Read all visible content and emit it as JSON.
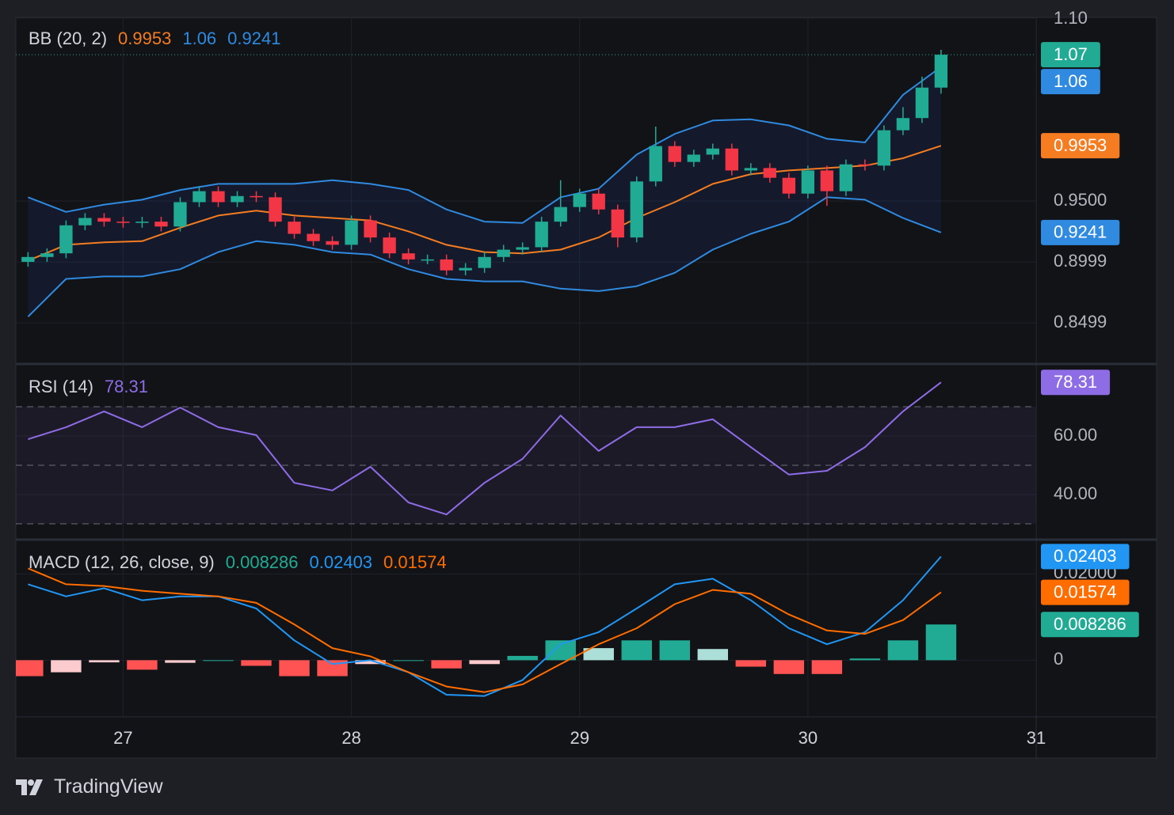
{
  "chart_data": [
    {
      "type": "candlestick",
      "title": "BB (20, 2)",
      "x": [
        26.5833,
        26.6667,
        26.75,
        26.8333,
        26.9167,
        27,
        27.0833,
        27.1667,
        27.25,
        27.3333,
        27.4167,
        27.5,
        27.5833,
        27.6667,
        27.75,
        27.8333,
        27.9167,
        28,
        28.0833,
        28.1667,
        28.25,
        28.3333,
        28.4167,
        28.5,
        28.5833,
        28.6667,
        28.75,
        28.8333,
        28.9167,
        29,
        29.0833,
        29.1667,
        29.25,
        29.3333,
        29.4167,
        29.5,
        29.5833,
        29.6667,
        29.75,
        29.8333,
        29.9167,
        30,
        30.0833,
        30.1667,
        30.25,
        30.3333,
        30.4167,
        30.5,
        30.5833
      ],
      "open": [
        0.9,
        0.904,
        0.907,
        0.93,
        0.936,
        0.933,
        0.932,
        0.933,
        0.929,
        0.949,
        0.958,
        0.949,
        0.954,
        0.953,
        0.933,
        0.923,
        0.917,
        0.914,
        0.934,
        0.92,
        0.907,
        0.902,
        0.902,
        0.893,
        0.895,
        0.904,
        0.91,
        0.912,
        0.933,
        0.945,
        0.956,
        0.943,
        0.92,
        0.966,
        0.995,
        0.982,
        0.988,
        0.993,
        0.975,
        0.977,
        0.969,
        0.956,
        0.975,
        0.958,
        0.98,
        0.979,
        1.008,
        1.018,
        1.043
      ],
      "high": [
        0.908,
        0.911,
        0.934,
        0.94,
        0.94,
        0.937,
        0.937,
        0.937,
        0.953,
        0.962,
        0.962,
        0.958,
        0.958,
        0.957,
        0.937,
        0.927,
        0.921,
        0.938,
        0.938,
        0.924,
        0.911,
        0.906,
        0.906,
        0.899,
        0.908,
        0.914,
        0.916,
        0.937,
        0.967,
        0.96,
        0.96,
        0.947,
        0.97,
        1.011,
        0.999,
        0.992,
        0.997,
        0.997,
        0.981,
        0.981,
        0.973,
        0.979,
        0.979,
        0.984,
        0.984,
        1.012,
        1.027,
        1.052,
        1.074
      ],
      "low": [
        0.896,
        0.9,
        0.903,
        0.926,
        0.929,
        0.928,
        0.928,
        0.925,
        0.925,
        0.945,
        0.945,
        0.945,
        0.949,
        0.929,
        0.919,
        0.913,
        0.91,
        0.91,
        0.916,
        0.903,
        0.898,
        0.898,
        0.889,
        0.889,
        0.891,
        0.9,
        0.906,
        0.908,
        0.929,
        0.941,
        0.939,
        0.912,
        0.916,
        0.962,
        0.978,
        0.978,
        0.984,
        0.971,
        0.971,
        0.965,
        0.952,
        0.952,
        0.946,
        0.954,
        0.975,
        0.975,
        1.004,
        1.014,
        1.038
      ],
      "close": [
        0.904,
        0.907,
        0.93,
        0.936,
        0.933,
        0.932,
        0.933,
        0.929,
        0.949,
        0.958,
        0.949,
        0.954,
        0.953,
        0.933,
        0.923,
        0.917,
        0.914,
        0.934,
        0.92,
        0.907,
        0.902,
        0.902,
        0.893,
        0.895,
        0.904,
        0.91,
        0.912,
        0.933,
        0.945,
        0.956,
        0.943,
        0.92,
        0.966,
        0.995,
        0.982,
        0.988,
        0.993,
        0.975,
        0.977,
        0.969,
        0.956,
        0.975,
        0.958,
        0.98,
        0.979,
        1.008,
        1.018,
        1.043,
        1.07
      ],
      "up_color": "#22ab94",
      "down_color": "#f23645",
      "band_fill": "rgba(41,98,255,0.09)",
      "series": [
        {
          "color": "#f57c20",
          "x": [
            26.5833,
            26.75,
            26.9167,
            27.0833,
            27.25,
            27.4167,
            27.5833,
            27.75,
            27.9167,
            28.0833,
            28.25,
            28.4167,
            28.5833,
            28.75,
            28.9167,
            29.0833,
            29.25,
            29.4167,
            29.5833,
            29.75,
            29.9167,
            30.0833,
            30.25,
            30.4167,
            30.5833
          ],
          "values": [
            0.901,
            0.914,
            0.916,
            0.917,
            0.928,
            0.938,
            0.942,
            0.938,
            0.936,
            0.934,
            0.925,
            0.914,
            0.908,
            0.907,
            0.91,
            0.92,
            0.936,
            0.949,
            0.964,
            0.972,
            0.975,
            0.977,
            0.979,
            0.985,
            0.9953
          ]
        },
        {
          "color": "#2f8ae0",
          "x": [
            26.5833,
            26.75,
            26.9167,
            27.0833,
            27.25,
            27.4167,
            27.5833,
            27.75,
            27.9167,
            28.0833,
            28.25,
            28.4167,
            28.5833,
            28.75,
            28.9167,
            29.0833,
            29.25,
            29.4167,
            29.5833,
            29.75,
            29.9167,
            30.0833,
            30.25,
            30.4167,
            30.5833
          ],
          "values": [
            0.953,
            0.941,
            0.947,
            0.951,
            0.959,
            0.964,
            0.964,
            0.964,
            0.967,
            0.964,
            0.959,
            0.943,
            0.933,
            0.932,
            0.953,
            0.96,
            0.988,
            1.005,
            1.016,
            1.017,
            1.012,
            1.001,
            0.998,
            1.037,
            1.06
          ]
        },
        {
          "color": "#2f8ae0",
          "x": [
            26.5833,
            26.75,
            26.9167,
            27.0833,
            27.25,
            27.4167,
            27.5833,
            27.75,
            27.9167,
            28.0833,
            28.25,
            28.4167,
            28.5833,
            28.75,
            28.9167,
            29.0833,
            29.25,
            29.4167,
            29.5833,
            29.75,
            29.9167,
            30.0833,
            30.25,
            30.4167,
            30.5833
          ],
          "values": [
            0.855,
            0.886,
            0.888,
            0.888,
            0.894,
            0.908,
            0.917,
            0.914,
            0.908,
            0.906,
            0.894,
            0.886,
            0.884,
            0.884,
            0.878,
            0.876,
            0.88,
            0.891,
            0.91,
            0.923,
            0.933,
            0.953,
            0.951,
            0.936,
            0.9241
          ]
        }
      ],
      "xlim": [
        26.53,
        31.0
      ],
      "ylim": [
        0.8175,
        1.1006
      ],
      "yticks": [
        0.8499,
        0.8999,
        {
          "value": 0.95,
          "label": "0.9500"
        },
        {
          "value": 1.1,
          "label": "1.10"
        }
      ],
      "grid": true
    },
    {
      "type": "line",
      "title": "RSI (14)",
      "x": [
        26.5833,
        26.75,
        26.9167,
        27.0833,
        27.25,
        27.4167,
        27.5833,
        27.75,
        27.9167,
        28.0833,
        28.25,
        28.4167,
        28.5833,
        28.75,
        28.9167,
        29.0833,
        29.25,
        29.4167,
        29.5833,
        29.75,
        29.9167,
        30.0833,
        30.25,
        30.4167,
        30.5833
      ],
      "series": [
        {
          "color": "#8e6ce6",
          "values": [
            58.9,
            63,
            68.4,
            63,
            69.7,
            63,
            60.3,
            44,
            41.4,
            49.5,
            37.3,
            33.2,
            44,
            52.2,
            67,
            54.9,
            63,
            63,
            65.7,
            56.2,
            46.8,
            48.1,
            56.2,
            68.4,
            78.31
          ]
        }
      ],
      "hlines": [
        30,
        50,
        70
      ],
      "band_fill": "rgba(126,87,194,0.1)",
      "xlim": [
        26.53,
        31.0
      ],
      "ylim": [
        25.14,
        84.05
      ],
      "yticks": [
        {
          "value": 40,
          "label": "40.00"
        },
        {
          "value": 60,
          "label": "60.00"
        }
      ],
      "grid": true
    },
    {
      "type": "macd",
      "title": "MACD (12, 26, close, 9)",
      "x": [
        26.5833,
        26.75,
        26.9167,
        27.0833,
        27.25,
        27.4167,
        27.5833,
        27.75,
        27.9167,
        28.0833,
        28.25,
        28.4167,
        28.5833,
        28.75,
        28.9167,
        29.0833,
        29.25,
        29.4167,
        29.5833,
        29.75,
        29.9167,
        30.0833,
        30.25,
        30.4167,
        30.5833
      ],
      "histogram": {
        "values": [
          -0.0037,
          -0.0028,
          -0.0005,
          -0.0022,
          -0.0006,
          0,
          -0.0013,
          -0.0037,
          -0.0037,
          -0.0009,
          0,
          -0.0019,
          -0.0009,
          0.001,
          0.0046,
          0.0028,
          0.0046,
          0.0046,
          0.0026,
          -0.0015,
          -0.0032,
          -0.0032,
          0.0004,
          0.0046,
          0.008286
        ],
        "colors": [
          "#22ab94",
          "#acdfd8",
          "#fccbcd",
          "#ff5252"
        ]
      },
      "series": [
        {
          "color": "#2196f3",
          "values": [
            0.0176,
            0.0148,
            0.0167,
            0.0139,
            0.0148,
            0.0148,
            0.012,
            0.0046,
            -0.0009,
            0,
            -0.0028,
            -0.008,
            -0.0083,
            -0.0046,
            0.0037,
            0.0065,
            0.012,
            0.0176,
            0.0189,
            0.0139,
            0.0074,
            0.0037,
            0.0065,
            0.0139,
            0.02403
          ]
        },
        {
          "color": "#ff6d00",
          "values": [
            0.0213,
            0.0176,
            0.0172,
            0.0161,
            0.0154,
            0.0148,
            0.0133,
            0.0083,
            0.0028,
            0.0009,
            -0.0028,
            -0.0061,
            -0.0074,
            -0.0056,
            -0.0009,
            0.0037,
            0.0074,
            0.013,
            0.0163,
            0.0154,
            0.0106,
            0.0069,
            0.0061,
            0.0093,
            0.01574
          ]
        }
      ],
      "xlim": [
        26.53,
        31.0
      ],
      "ylim": [
        -0.01296,
        0.02759
      ],
      "yticks": [
        0,
        {
          "value": 0.02,
          "label": "0.02000"
        }
      ],
      "xticks": [
        27,
        28,
        29,
        30,
        31
      ],
      "grid": true
    }
  ],
  "footer": {
    "brand": "TradingView"
  }
}
